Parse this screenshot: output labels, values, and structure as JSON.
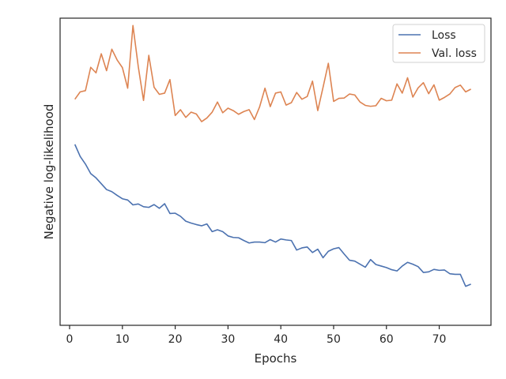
{
  "chart_data": {
    "type": "line",
    "xlabel": "Epochs",
    "ylabel": "Negative log-likelihood",
    "xlim": [
      -1.8,
      79.8
    ],
    "ylim": [
      0.0,
      1.0
    ],
    "x_ticks": [
      0,
      10,
      20,
      30,
      40,
      50,
      60,
      70
    ],
    "y_ticks_shown": false,
    "grid": false,
    "legend": "top-right",
    "series": [
      {
        "name": "Loss",
        "color": "#4c72b0",
        "x": [
          1,
          2,
          3,
          4,
          5,
          6,
          7,
          8,
          9,
          10,
          11,
          12,
          13,
          14,
          15,
          16,
          17,
          18,
          19,
          20,
          21,
          22,
          23,
          24,
          25,
          26,
          27,
          28,
          29,
          30,
          31,
          32,
          33,
          34,
          35,
          36,
          37,
          38,
          39,
          40,
          41,
          42,
          43,
          44,
          45,
          46,
          47,
          48,
          49,
          50,
          51,
          52,
          53,
          54,
          55,
          56,
          57,
          58,
          59,
          60,
          61,
          62,
          63,
          64,
          65,
          66,
          67,
          68,
          69,
          70,
          71,
          72,
          73,
          74,
          75,
          76
        ],
        "values": [
          0.589,
          0.55,
          0.525,
          0.494,
          0.48,
          0.461,
          0.442,
          0.435,
          0.423,
          0.412,
          0.408,
          0.392,
          0.395,
          0.386,
          0.384,
          0.393,
          0.381,
          0.396,
          0.364,
          0.365,
          0.355,
          0.339,
          0.333,
          0.328,
          0.324,
          0.33,
          0.305,
          0.311,
          0.305,
          0.291,
          0.286,
          0.285,
          0.276,
          0.268,
          0.271,
          0.271,
          0.269,
          0.279,
          0.271,
          0.281,
          0.278,
          0.276,
          0.245,
          0.252,
          0.255,
          0.237,
          0.248,
          0.22,
          0.241,
          0.249,
          0.253,
          0.232,
          0.212,
          0.209,
          0.199,
          0.189,
          0.214,
          0.198,
          0.193,
          0.188,
          0.181,
          0.177,
          0.193,
          0.205,
          0.199,
          0.191,
          0.172,
          0.174,
          0.182,
          0.179,
          0.18,
          0.168,
          0.166,
          0.166,
          0.127,
          0.134
        ]
      },
      {
        "name": "Val. loss",
        "color": "#dd8452",
        "x": [
          1,
          2,
          3,
          4,
          5,
          6,
          7,
          8,
          9,
          10,
          11,
          12,
          13,
          14,
          15,
          16,
          17,
          18,
          19,
          20,
          21,
          22,
          23,
          24,
          25,
          26,
          27,
          28,
          29,
          30,
          31,
          32,
          33,
          34,
          35,
          36,
          37,
          38,
          39,
          40,
          41,
          42,
          43,
          44,
          45,
          46,
          47,
          48,
          49,
          50,
          51,
          52,
          53,
          54,
          55,
          56,
          57,
          58,
          59,
          60,
          61,
          62,
          63,
          64,
          65,
          66,
          67,
          68,
          69,
          70,
          71,
          72,
          73,
          74,
          75,
          76
        ],
        "values": [
          0.736,
          0.76,
          0.764,
          0.84,
          0.822,
          0.884,
          0.829,
          0.899,
          0.864,
          0.839,
          0.772,
          0.976,
          0.843,
          0.732,
          0.879,
          0.775,
          0.752,
          0.756,
          0.8,
          0.683,
          0.702,
          0.677,
          0.694,
          0.688,
          0.663,
          0.675,
          0.694,
          0.727,
          0.692,
          0.707,
          0.699,
          0.687,
          0.696,
          0.702,
          0.67,
          0.712,
          0.772,
          0.712,
          0.756,
          0.76,
          0.717,
          0.725,
          0.758,
          0.736,
          0.745,
          0.795,
          0.699,
          0.775,
          0.853,
          0.729,
          0.739,
          0.74,
          0.753,
          0.75,
          0.727,
          0.716,
          0.713,
          0.715,
          0.739,
          0.731,
          0.733,
          0.786,
          0.756,
          0.806,
          0.743,
          0.773,
          0.79,
          0.754,
          0.783,
          0.733,
          0.742,
          0.753,
          0.774,
          0.782,
          0.76,
          0.769
        ]
      }
    ]
  }
}
